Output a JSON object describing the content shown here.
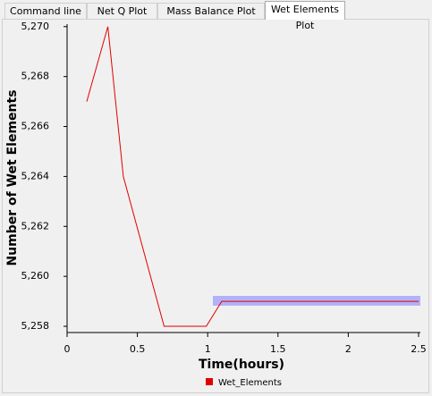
{
  "tabs": [
    "Command line",
    "Net Q Plot",
    "Mass Balance Plot",
    "Wet Elements Plot"
  ],
  "chart_data": {
    "type": "line",
    "x_label": "Time(hours)",
    "y_label": "Number of Wet Elements",
    "x": [
      0.14,
      0.29,
      0.4,
      0.69,
      0.99,
      1.1,
      2.5
    ],
    "series": [
      {
        "name": "Wet_Elements",
        "color": "#e00000",
        "values": [
          5267,
          5270,
          5264,
          5258,
          5258,
          5259,
          5259
        ]
      }
    ],
    "xlim": [
      0,
      2.5
    ],
    "xticks": [
      0,
      0.5,
      1,
      1.5,
      2,
      2.5
    ],
    "ylim": [
      5257.75,
      5270.1
    ],
    "yticks": [
      {
        "value": 5258,
        "label": "5,258"
      },
      {
        "value": 5260,
        "label": "5,260"
      },
      {
        "value": 5262,
        "label": "5,262"
      },
      {
        "value": 5264,
        "label": "5,264"
      },
      {
        "value": 5266,
        "label": "5,266"
      },
      {
        "value": 5268,
        "label": "5,268"
      },
      {
        "value": 5270,
        "label": "5,270"
      }
    ],
    "legend": "bottom"
  }
}
